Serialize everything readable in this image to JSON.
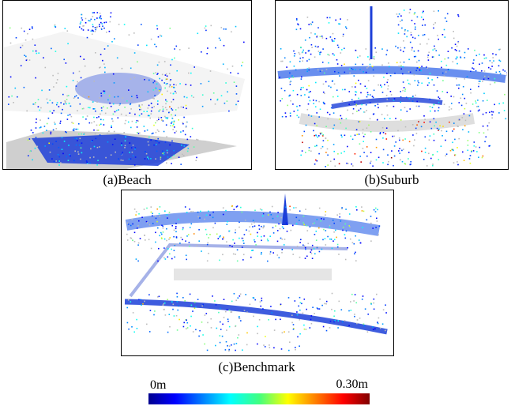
{
  "panels": [
    {
      "caption": "(a)Beach"
    },
    {
      "caption": "(b)Suburb"
    },
    {
      "caption": "(c)Benchmark"
    }
  ],
  "colorbar": {
    "min_label": "0m",
    "max_label": "0.30m"
  }
}
